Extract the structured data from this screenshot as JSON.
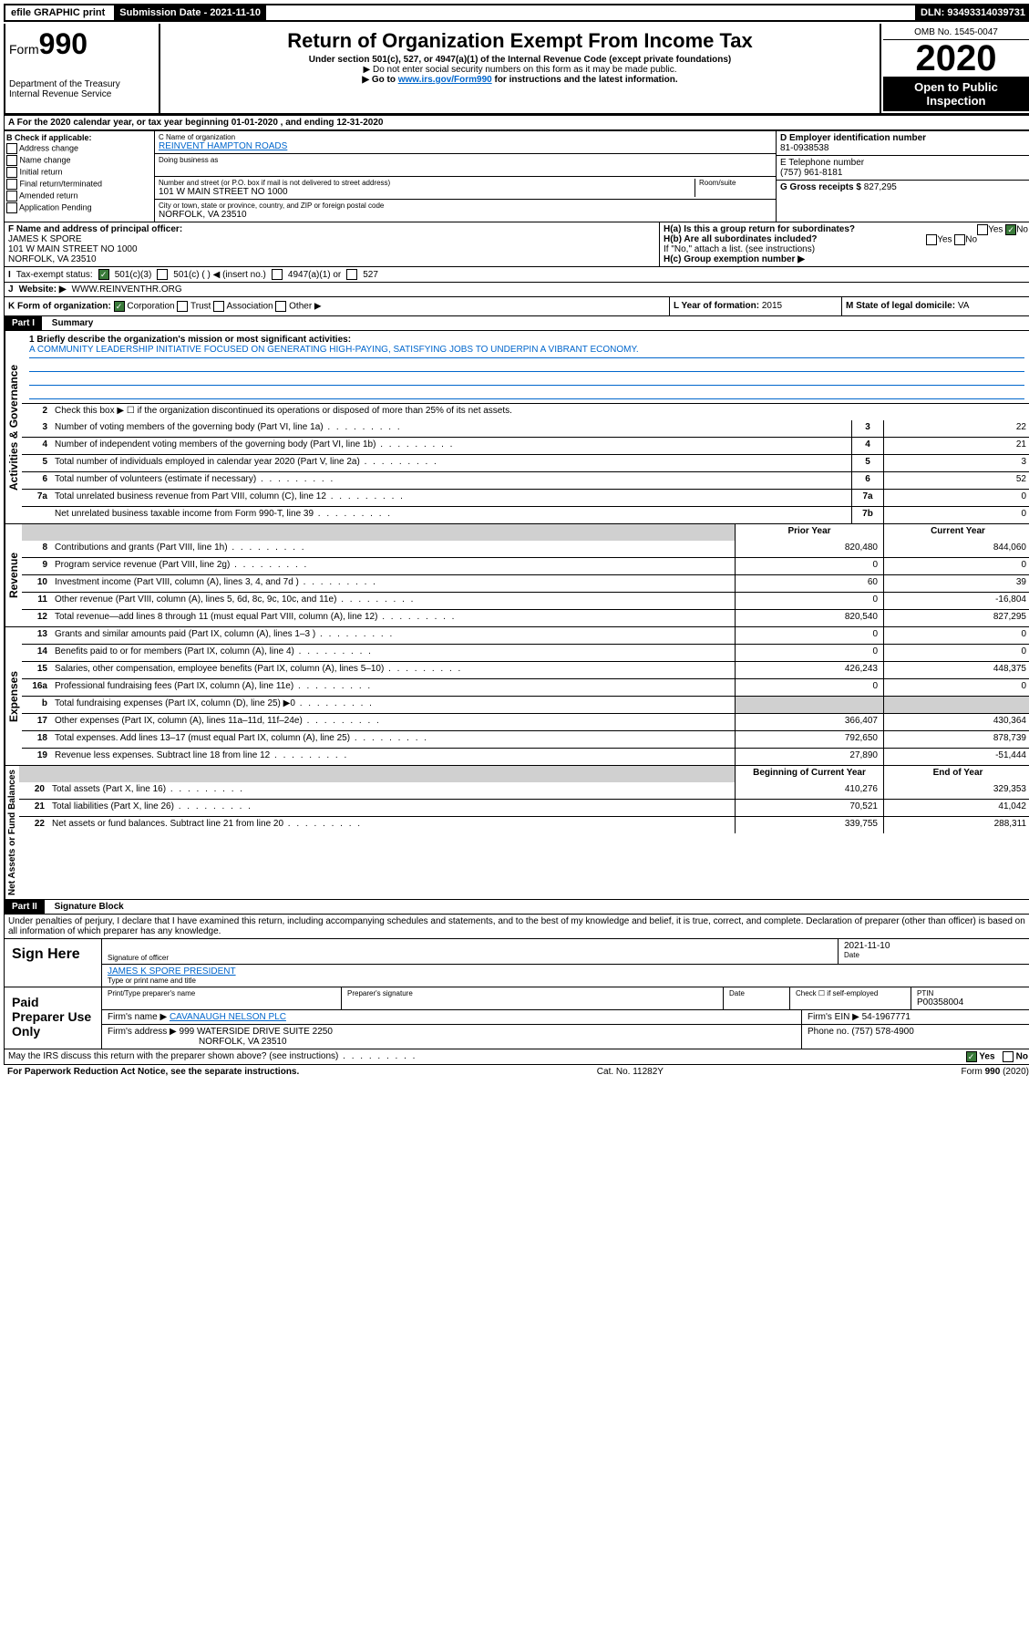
{
  "topbar": {
    "efile": "efile GRAPHIC print",
    "submission": "Submission Date - 2021-11-10",
    "dln": "DLN: 93493314039731"
  },
  "header": {
    "form_prefix": "Form",
    "form_num": "990",
    "dept": "Department of the Treasury\nInternal Revenue Service",
    "title": "Return of Organization Exempt From Income Tax",
    "subtitle": "Under section 501(c), 527, or 4947(a)(1) of the Internal Revenue Code (except private foundations)",
    "note1": "▶ Do not enter social security numbers on this form as it may be made public.",
    "note2_pre": "▶ Go to ",
    "note2_link": "www.irs.gov/Form990",
    "note2_post": " for instructions and the latest information.",
    "omb": "OMB No. 1545-0047",
    "year": "2020",
    "open": "Open to Public Inspection"
  },
  "sectionA": {
    "text": "A For the 2020 calendar year, or tax year beginning 01-01-2020     , and ending 12-31-2020"
  },
  "sectionB": {
    "label": "B Check if applicable:",
    "items": [
      "Address change",
      "Name change",
      "Initial return",
      "Final return/terminated",
      "Amended return",
      "Application Pending"
    ]
  },
  "sectionC": {
    "label": "C Name of organization",
    "name": "REINVENT HAMPTON ROADS",
    "dba_label": "Doing business as",
    "addr_label": "Number and street (or P.O. box if mail is not delivered to street address)",
    "room_label": "Room/suite",
    "addr": "101 W MAIN STREET NO 1000",
    "city_label": "City or town, state or province, country, and ZIP or foreign postal code",
    "city": "NORFOLK, VA  23510"
  },
  "sectionD": {
    "label": "D Employer identification number",
    "value": "81-0938538"
  },
  "sectionE": {
    "label": "E Telephone number",
    "value": "(757) 961-8181"
  },
  "sectionG": {
    "label": "G Gross receipts $",
    "value": "827,295"
  },
  "sectionF": {
    "label": "F  Name and address of principal officer:",
    "name": "JAMES K SPORE",
    "addr1": "101 W MAIN STREET NO 1000",
    "addr2": "NORFOLK, VA  23510"
  },
  "sectionH": {
    "a": "H(a)  Is this a group return for subordinates?",
    "b": "H(b)  Are all subordinates included?",
    "b_note": "If \"No,\" attach a list. (see instructions)",
    "c": "H(c)  Group exemption number ▶",
    "yes": "Yes",
    "no": "No"
  },
  "sectionI": {
    "label": "Tax-exempt status:",
    "opts": [
      "501(c)(3)",
      "501(c) (  ) ◀ (insert no.)",
      "4947(a)(1) or",
      "527"
    ]
  },
  "sectionJ": {
    "label": "Website: ▶",
    "value": "WWW.REINVENTHR.ORG"
  },
  "sectionK": {
    "label": "K Form of organization:",
    "opts": [
      "Corporation",
      "Trust",
      "Association",
      "Other ▶"
    ]
  },
  "sectionL": {
    "label": "L Year of formation:",
    "value": "2015"
  },
  "sectionM": {
    "label": "M State of legal domicile:",
    "value": "VA"
  },
  "partI": {
    "title": "Part I",
    "subtitle": "Summary",
    "side_gov": "Activities & Governance",
    "side_rev": "Revenue",
    "side_exp": "Expenses",
    "side_net": "Net Assets or Fund Balances",
    "line1_label": "1  Briefly describe the organization's mission or most significant activities:",
    "mission": "A COMMUNITY LEADERSHIP INITIATIVE FOCUSED ON GENERATING HIGH-PAYING, SATISFYING JOBS TO UNDERPIN A VIBRANT ECONOMY.",
    "line2": "Check this box ▶ ☐  if the organization discontinued its operations or disposed of more than 25% of its net assets.",
    "lines_gov": [
      {
        "n": "3",
        "t": "Number of voting members of the governing body (Part VI, line 1a)",
        "box": "3",
        "v": "22"
      },
      {
        "n": "4",
        "t": "Number of independent voting members of the governing body (Part VI, line 1b)",
        "box": "4",
        "v": "21"
      },
      {
        "n": "5",
        "t": "Total number of individuals employed in calendar year 2020 (Part V, line 2a)",
        "box": "5",
        "v": "3"
      },
      {
        "n": "6",
        "t": "Total number of volunteers (estimate if necessary)",
        "box": "6",
        "v": "52"
      },
      {
        "n": "7a",
        "t": "Total unrelated business revenue from Part VIII, column (C), line 12",
        "box": "7a",
        "v": "0"
      },
      {
        "n": "",
        "t": "Net unrelated business taxable income from Form 990-T, line 39",
        "box": "7b",
        "v": "0"
      }
    ],
    "hdr_prior": "Prior Year",
    "hdr_current": "Current Year",
    "lines_rev": [
      {
        "n": "8",
        "t": "Contributions and grants (Part VIII, line 1h)",
        "p": "820,480",
        "c": "844,060"
      },
      {
        "n": "9",
        "t": "Program service revenue (Part VIII, line 2g)",
        "p": "0",
        "c": "0"
      },
      {
        "n": "10",
        "t": "Investment income (Part VIII, column (A), lines 3, 4, and 7d )",
        "p": "60",
        "c": "39"
      },
      {
        "n": "11",
        "t": "Other revenue (Part VIII, column (A), lines 5, 6d, 8c, 9c, 10c, and 11e)",
        "p": "0",
        "c": "-16,804"
      },
      {
        "n": "12",
        "t": "Total revenue—add lines 8 through 11 (must equal Part VIII, column (A), line 12)",
        "p": "820,540",
        "c": "827,295"
      }
    ],
    "lines_exp": [
      {
        "n": "13",
        "t": "Grants and similar amounts paid (Part IX, column (A), lines 1–3 )",
        "p": "0",
        "c": "0"
      },
      {
        "n": "14",
        "t": "Benefits paid to or for members (Part IX, column (A), line 4)",
        "p": "0",
        "c": "0"
      },
      {
        "n": "15",
        "t": "Salaries, other compensation, employee benefits (Part IX, column (A), lines 5–10)",
        "p": "426,243",
        "c": "448,375"
      },
      {
        "n": "16a",
        "t": "Professional fundraising fees (Part IX, column (A), line 11e)",
        "p": "0",
        "c": "0"
      },
      {
        "n": "b",
        "t": "Total fundraising expenses (Part IX, column (D), line 25) ▶0",
        "p": "",
        "c": "",
        "shade": true
      },
      {
        "n": "17",
        "t": "Other expenses (Part IX, column (A), lines 11a–11d, 11f–24e)",
        "p": "366,407",
        "c": "430,364"
      },
      {
        "n": "18",
        "t": "Total expenses. Add lines 13–17 (must equal Part IX, column (A), line 25)",
        "p": "792,650",
        "c": "878,739"
      },
      {
        "n": "19",
        "t": "Revenue less expenses. Subtract line 18 from line 12",
        "p": "27,890",
        "c": "-51,444"
      }
    ],
    "hdr_begin": "Beginning of Current Year",
    "hdr_end": "End of Year",
    "lines_net": [
      {
        "n": "20",
        "t": "Total assets (Part X, line 16)",
        "p": "410,276",
        "c": "329,353"
      },
      {
        "n": "21",
        "t": "Total liabilities (Part X, line 26)",
        "p": "70,521",
        "c": "41,042"
      },
      {
        "n": "22",
        "t": "Net assets or fund balances. Subtract line 21 from line 20",
        "p": "339,755",
        "c": "288,311"
      }
    ]
  },
  "partII": {
    "title": "Part II",
    "subtitle": "Signature Block",
    "perjury": "Under penalties of perjury, I declare that I have examined this return, including accompanying schedules and statements, and to the best of my knowledge and belief, it is true, correct, and complete. Declaration of preparer (other than officer) is based on all information of which preparer has any knowledge.",
    "sign_here": "Sign Here",
    "sig_officer": "Signature of officer",
    "sig_date": "2021-11-10",
    "sig_date_label": "Date",
    "officer_name": "JAMES K SPORE  PRESIDENT",
    "officer_label": "Type or print name and title",
    "paid": "Paid Preparer Use Only",
    "prep_name_label": "Print/Type preparer's name",
    "prep_sig_label": "Preparer's signature",
    "date_label": "Date",
    "self_emp": "Check ☐ if self-employed",
    "ptin_label": "PTIN",
    "ptin": "P00358004",
    "firm_name_label": "Firm's name      ▶",
    "firm_name": "CAVANAUGH NELSON PLC",
    "firm_ein_label": "Firm's EIN ▶",
    "firm_ein": "54-1967771",
    "firm_addr_label": "Firm's address ▶",
    "firm_addr": "999 WATERSIDE DRIVE SUITE 2250",
    "firm_city": "NORFOLK, VA  23510",
    "phone_label": "Phone no.",
    "phone": "(757) 578-4900",
    "discuss": "May the IRS discuss this return with the preparer shown above? (see instructions)",
    "yes": "Yes",
    "no": "No"
  },
  "footer": {
    "pra": "For Paperwork Reduction Act Notice, see the separate instructions.",
    "cat": "Cat. No. 11282Y",
    "form": "Form 990 (2020)"
  },
  "colors": {
    "black": "#000000",
    "link": "#0066cc",
    "checked": "#3a7a3a"
  }
}
